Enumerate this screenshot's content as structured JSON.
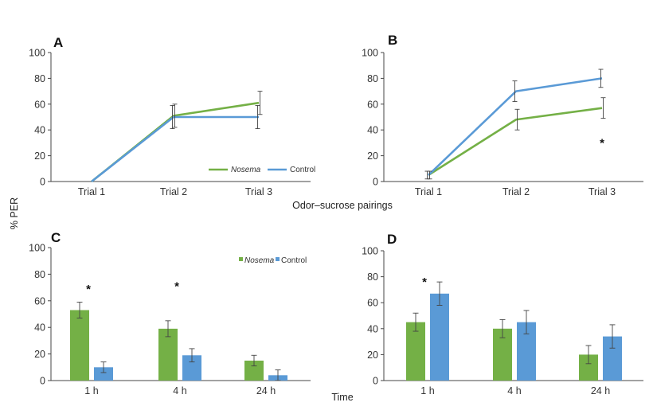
{
  "figure": {
    "shared_ylabel": "% PER",
    "top_xlabel": "Odor–sucrose pairings",
    "bottom_xlabel": "Time"
  },
  "colors": {
    "nosema": "#74b046",
    "control": "#5a9ad6",
    "axis": "#444444",
    "error": "#444444"
  },
  "chart_data": [
    {
      "panel": "A",
      "type": "line",
      "categories": [
        "Trial 1",
        "Trial 2",
        "Trial 3"
      ],
      "ylim": [
        0,
        100
      ],
      "yticks": [
        0,
        20,
        40,
        60,
        80,
        100
      ],
      "legend": {
        "placement": "bottom-right",
        "entries": [
          "Nosema",
          "Control"
        ]
      },
      "series": [
        {
          "name": "Nosema",
          "values": [
            0,
            51,
            61
          ],
          "errors": [
            0,
            9,
            9
          ]
        },
        {
          "name": "Control",
          "values": [
            0,
            50,
            50
          ],
          "errors": [
            0,
            9,
            9
          ]
        }
      ],
      "annotations": []
    },
    {
      "panel": "B",
      "type": "line",
      "categories": [
        "Trial 1",
        "Trial 2",
        "Trial 3"
      ],
      "ylim": [
        0,
        100
      ],
      "yticks": [
        0,
        20,
        40,
        60,
        80,
        100
      ],
      "series": [
        {
          "name": "Nosema",
          "values": [
            5,
            48,
            57
          ],
          "errors": [
            3,
            8,
            8
          ]
        },
        {
          "name": "Control",
          "values": [
            5,
            70,
            80
          ],
          "errors": [
            3,
            8,
            7
          ]
        }
      ],
      "annotations": [
        {
          "text": "*",
          "category": "Trial 3",
          "y": 30
        }
      ]
    },
    {
      "panel": "C",
      "type": "bar",
      "categories": [
        "1 h",
        "4 h",
        "24 h"
      ],
      "ylim": [
        0,
        100
      ],
      "yticks": [
        0,
        20,
        40,
        60,
        80,
        100
      ],
      "legend": {
        "placement": "top-right",
        "entries": [
          "Nosema",
          "Control"
        ]
      },
      "series": [
        {
          "name": "Nosema",
          "values": [
            53,
            39,
            15
          ],
          "errors": [
            6,
            6,
            4
          ]
        },
        {
          "name": "Control",
          "values": [
            10,
            19,
            4
          ],
          "errors": [
            4,
            5,
            4
          ]
        }
      ],
      "annotations": [
        {
          "text": "*",
          "category": "1 h",
          "y": 69
        },
        {
          "text": "*",
          "category": "4 h",
          "y": 71
        }
      ]
    },
    {
      "panel": "D",
      "type": "bar",
      "categories": [
        "1 h",
        "4 h",
        "24 h"
      ],
      "ylim": [
        0,
        100
      ],
      "yticks": [
        0,
        20,
        40,
        60,
        80,
        100
      ],
      "series": [
        {
          "name": "Nosema",
          "values": [
            45,
            40,
            20
          ],
          "errors": [
            7,
            7,
            7
          ]
        },
        {
          "name": "Control",
          "values": [
            67,
            45,
            34
          ],
          "errors": [
            9,
            9,
            9
          ]
        }
      ],
      "annotations": [
        {
          "text": "*",
          "category": "1 h",
          "y": 76
        }
      ]
    }
  ]
}
